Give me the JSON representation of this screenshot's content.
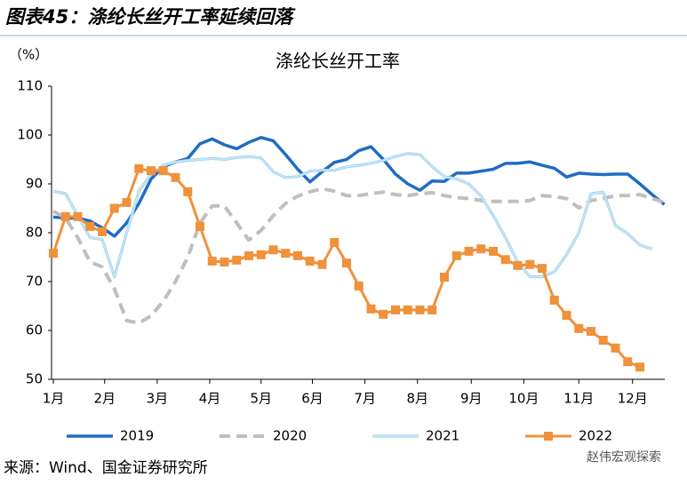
{
  "header": {
    "title": "图表45：涤纶长丝开工率延续回落"
  },
  "footer": {
    "source": "来源：Wind、国金证券研究所",
    "watermark": "赵伟宏观探索"
  },
  "chart_data": {
    "type": "line",
    "title": "涤纶长丝开工率",
    "y_unit_label": "（%）",
    "x": [
      1,
      2,
      3,
      4,
      5,
      6,
      7,
      8,
      9,
      10,
      11,
      12,
      13,
      14,
      15,
      16,
      17,
      18,
      19,
      20,
      21,
      22,
      23,
      24,
      25,
      26,
      27,
      28,
      29,
      30,
      31,
      32,
      33,
      34,
      35,
      36,
      37,
      38,
      39,
      40,
      41,
      42,
      43,
      44,
      45,
      46,
      47,
      48,
      49,
      50,
      51
    ],
    "xlim": [
      1,
      51
    ],
    "xticks": [
      {
        "value": 1,
        "label": "1月"
      },
      {
        "value": 5.2,
        "label": "2月"
      },
      {
        "value": 9.5,
        "label": "3月"
      },
      {
        "value": 13.8,
        "label": "4月"
      },
      {
        "value": 18,
        "label": "5月"
      },
      {
        "value": 22.2,
        "label": "6月"
      },
      {
        "value": 26.5,
        "label": "7月"
      },
      {
        "value": 30.8,
        "label": "8月"
      },
      {
        "value": 35.2,
        "label": "9月"
      },
      {
        "value": 39.5,
        "label": "10月"
      },
      {
        "value": 44,
        "label": "11月"
      },
      {
        "value": 48.4,
        "label": "12月"
      }
    ],
    "ylim": [
      50,
      110
    ],
    "yticks": [
      50,
      60,
      70,
      80,
      90,
      100,
      110
    ],
    "grid": false,
    "legend": "bottom",
    "series": [
      {
        "name": "2019",
        "color": "#1f6cc4",
        "line_style": "solid",
        "values": [
          83.2,
          83,
          83,
          82.4,
          81,
          79.3,
          82,
          86,
          91,
          93.5,
          94.5,
          95.2,
          98.2,
          99.2,
          98,
          97.2,
          98.5,
          99.5,
          98.8,
          96,
          93,
          90.4,
          92.5,
          94.4,
          95,
          96.8,
          97.6,
          95,
          92,
          90,
          88.7,
          90.6,
          90.5,
          92.2,
          92.2,
          92.6,
          93,
          94.2,
          94.2,
          94.5,
          93.8,
          93.2,
          91.4,
          92.2,
          92,
          91.9,
          92,
          92,
          90,
          87.8,
          85.8
        ]
      },
      {
        "name": "2020",
        "color": "#bfbfbf",
        "line_style": "dashed",
        "values": [
          84.4,
          83,
          79,
          74,
          73,
          68.5,
          62,
          61.5,
          63,
          66,
          70,
          75,
          82,
          85.5,
          85.5,
          82,
          78.5,
          80.5,
          83.5,
          86,
          87.5,
          88.4,
          89,
          88.5,
          87.6,
          87.6,
          88,
          88.3,
          87.8,
          87.6,
          88,
          88.2,
          87.6,
          87.2,
          87,
          86.6,
          86.4,
          86.4,
          86.4,
          86.6,
          87.6,
          87.4,
          87,
          85.1,
          86.6,
          87,
          87.6,
          87.6,
          87.8,
          87,
          86.2
        ]
      },
      {
        "name": "2021",
        "color": "#cde9f7",
        "line_style": "outlined",
        "values": [
          88.5,
          88,
          83.5,
          79,
          78.6,
          71,
          80,
          88.5,
          92,
          93.8,
          94.5,
          94.8,
          95,
          95.2,
          95,
          95.4,
          95.6,
          95.3,
          92.5,
          91.3,
          91.5,
          92.6,
          92.8,
          92.8,
          93.5,
          93.8,
          94.2,
          94.8,
          95.6,
          96.2,
          96,
          93.5,
          91.5,
          91,
          90,
          87.5,
          83.5,
          79,
          74,
          71,
          71,
          72,
          75.5,
          80,
          88,
          88.3,
          81.5,
          79.8,
          77.5,
          76.7,
          null
        ]
      },
      {
        "name": "2022",
        "color": "#f0913b",
        "line_style": "solid",
        "marker": "square",
        "values": [
          75.8,
          83.3,
          83.3,
          81.3,
          80.2,
          85,
          86.2,
          93.1,
          92.7,
          92.7,
          91.3,
          88.4,
          81.3,
          74.2,
          74,
          74.4,
          75.3,
          75.5,
          76.5,
          75.8,
          75.3,
          74.2,
          73.5,
          78,
          73.8,
          69.1,
          64.4,
          63.3,
          64.2,
          64.2,
          64.2,
          64.2,
          70.9,
          75.3,
          76.2,
          76.7,
          76.2,
          74.5,
          73.3,
          73.5,
          72.7,
          66.2,
          63.1,
          60.4,
          59.8,
          58,
          56.4,
          53.6,
          52.5,
          null,
          null
        ]
      }
    ]
  }
}
